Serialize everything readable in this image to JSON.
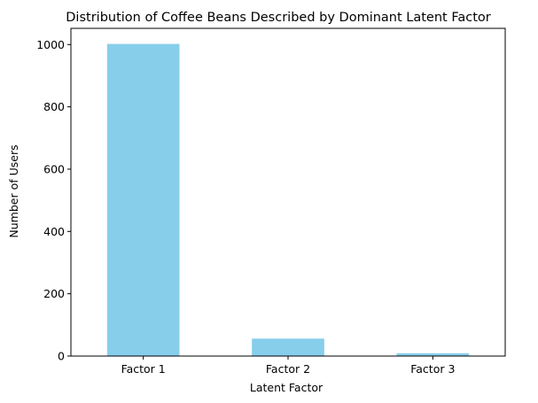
{
  "chart_data": {
    "type": "bar",
    "title": "Distribution of Coffee Beans Described by Dominant Latent Factor",
    "xlabel": "Latent Factor",
    "ylabel": "Number of Users",
    "categories": [
      "Factor 1",
      "Factor 2",
      "Factor 3"
    ],
    "values": [
      1002,
      56,
      9
    ],
    "ylim": [
      0,
      1052
    ],
    "yticks": [
      0,
      200,
      400,
      600,
      800,
      1000
    ],
    "grid": false,
    "legend": "none",
    "bar_color": "#87CEEB"
  }
}
